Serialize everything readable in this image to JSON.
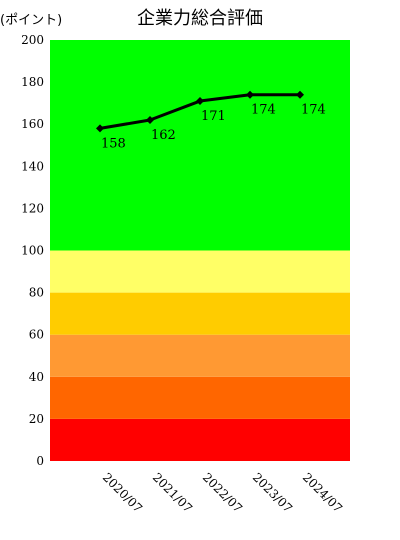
{
  "chart_data": {
    "type": "line",
    "title": "企業力総合評価",
    "unit_label": "(ポイント)",
    "xlabel": "",
    "ylabel": "",
    "ylim": [
      0,
      200
    ],
    "yticks": [
      0,
      20,
      40,
      60,
      80,
      100,
      120,
      140,
      160,
      180,
      200
    ],
    "categories": [
      "2020/07",
      "2021/07",
      "2022/07",
      "2023/07",
      "2024/07"
    ],
    "series": [
      {
        "values": [
          158,
          162,
          171,
          174,
          174
        ]
      }
    ],
    "data_labels": [
      "158",
      "162",
      "171",
      "174",
      "174"
    ],
    "bands": [
      {
        "from": 0,
        "to": 20,
        "color": "#ff0000"
      },
      {
        "from": 20,
        "to": 40,
        "color": "#ff6600"
      },
      {
        "from": 40,
        "to": 60,
        "color": "#ff9933"
      },
      {
        "from": 60,
        "to": 80,
        "color": "#ffcc00"
      },
      {
        "from": 80,
        "to": 100,
        "color": "#ffff66"
      },
      {
        "from": 100,
        "to": 200,
        "color": "#00ff00"
      }
    ],
    "line_color": "#000000",
    "grid": false,
    "legend": "none"
  }
}
